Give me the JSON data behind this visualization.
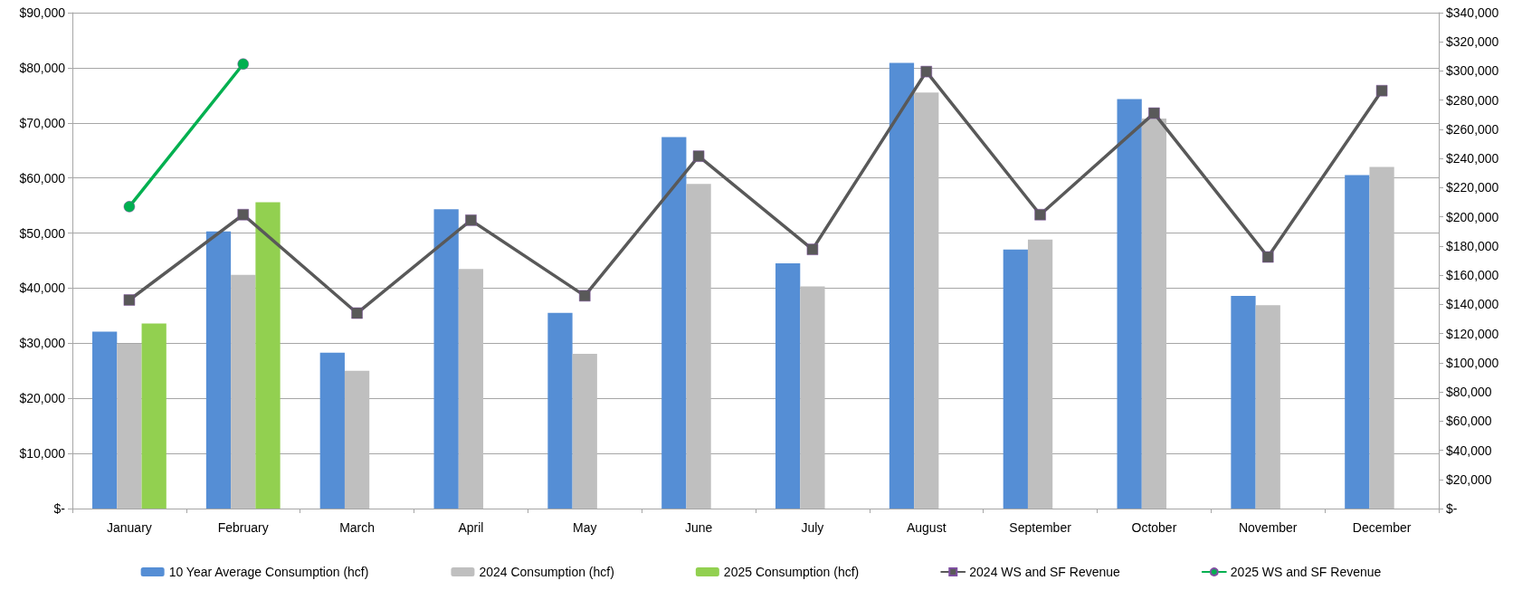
{
  "chart_data": {
    "type": "bar",
    "categories": [
      "January",
      "February",
      "March",
      "April",
      "May",
      "June",
      "July",
      "August",
      "September",
      "October",
      "November",
      "December"
    ],
    "series": [
      {
        "name": "10 Year Average Consumption (hcf)",
        "color": "#558ed5",
        "values": [
          32100,
          50300,
          28300,
          54300,
          35500,
          67400,
          44500,
          80900,
          47000,
          74300,
          38600,
          60500
        ]
      },
      {
        "name": "2024 Consumption (hcf)",
        "color": "#bfbfbf",
        "values": [
          29900,
          42400,
          25000,
          43500,
          28100,
          58900,
          40300,
          75500,
          48800,
          70800,
          36900,
          62000
        ]
      },
      {
        "name": "2025 Consumption (hcf)",
        "color": "#92d050",
        "values": [
          33600,
          55600,
          null,
          null,
          null,
          null,
          null,
          null,
          null,
          null,
          null,
          null
        ]
      },
      {
        "name": "2024 WS and SF Revenue",
        "type": "line",
        "axis": "y2",
        "color": "#595959",
        "marker": "square",
        "values": [
          143000,
          201500,
          134000,
          197700,
          145900,
          241600,
          177700,
          299600,
          201500,
          271100,
          172500,
          286500
        ]
      },
      {
        "name": "2025 WS and SF Revenue",
        "type": "line",
        "axis": "y2",
        "color": "#00b050",
        "marker": "circle",
        "values": [
          207000,
          304800,
          null,
          null,
          null,
          null,
          null,
          null,
          null,
          null,
          null,
          null
        ]
      }
    ],
    "ylim": [
      0,
      90000
    ],
    "yticks": [
      {
        "value": 0,
        "label": "$-"
      },
      {
        "value": 10000,
        "label": "$10,000"
      },
      {
        "value": 20000,
        "label": "$20,000"
      },
      {
        "value": 30000,
        "label": "$30,000"
      },
      {
        "value": 40000,
        "label": "$40,000"
      },
      {
        "value": 50000,
        "label": "$50,000"
      },
      {
        "value": 60000,
        "label": "$60,000"
      },
      {
        "value": 70000,
        "label": "$70,000"
      },
      {
        "value": 80000,
        "label": "$80,000"
      },
      {
        "value": 90000,
        "label": "$90,000"
      }
    ],
    "y2lim": [
      0,
      340000
    ],
    "y2ticks": [
      {
        "value": 0,
        "label": "$-"
      },
      {
        "value": 20000,
        "label": "$20,000"
      },
      {
        "value": 40000,
        "label": "$40,000"
      },
      {
        "value": 60000,
        "label": "$60,000"
      },
      {
        "value": 80000,
        "label": "$80,000"
      },
      {
        "value": 100000,
        "label": "$100,000"
      },
      {
        "value": 120000,
        "label": "$120,000"
      },
      {
        "value": 140000,
        "label": "$140,000"
      },
      {
        "value": 160000,
        "label": "$160,000"
      },
      {
        "value": 180000,
        "label": "$180,000"
      },
      {
        "value": 200000,
        "label": "$200,000"
      },
      {
        "value": 220000,
        "label": "$220,000"
      },
      {
        "value": 240000,
        "label": "$240,000"
      },
      {
        "value": 260000,
        "label": "$260,000"
      },
      {
        "value": 280000,
        "label": "$280,000"
      },
      {
        "value": 300000,
        "label": "$300,000"
      },
      {
        "value": 320000,
        "label": "$320,000"
      },
      {
        "value": 340000,
        "label": "$340,000"
      }
    ],
    "grid": "y",
    "legend": "bottom",
    "line_style": "solid"
  }
}
